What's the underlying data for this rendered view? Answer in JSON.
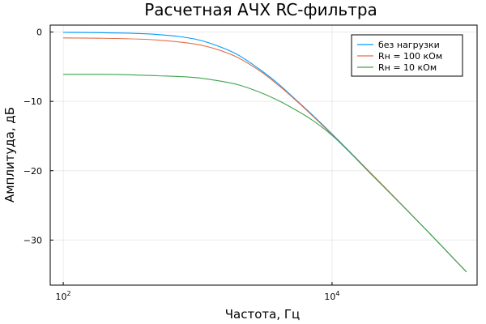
{
  "chart_data": {
    "type": "line",
    "title": "Расчетная АЧХ RC-фильтра",
    "xlabel": "Частота, Гц",
    "ylabel": "Амплитуда, дБ",
    "xscale": "log",
    "xlim": [
      80,
      120000
    ],
    "ylim": [
      -36.5,
      1.0
    ],
    "xticks": [
      {
        "value": 100,
        "base": "10",
        "exp": "2"
      },
      {
        "value": 10000,
        "base": "10",
        "exp": "4"
      }
    ],
    "yticks": [
      {
        "value": 0,
        "label": "0"
      },
      {
        "value": -10,
        "label": "−10"
      },
      {
        "value": -20,
        "label": "−20"
      },
      {
        "value": -30,
        "label": "−30"
      }
    ],
    "grid": true,
    "legend_position": "top-right",
    "series": [
      {
        "name": "без нагрузки",
        "color": "#009AFA",
        "x": [
          100,
          200,
          500,
          1000,
          1500,
          2000,
          3000,
          4000,
          5000,
          7000,
          10000,
          20000,
          50000,
          100000
        ],
        "y": [
          -0.05,
          -0.1,
          -0.35,
          -1.1,
          -2.2,
          -3.3,
          -5.6,
          -7.5,
          -9.2,
          -11.8,
          -14.7,
          -20.6,
          -28.5,
          -34.6
        ]
      },
      {
        "name": "Rн = 100 кОм",
        "color": "#E36F47",
        "x": [
          100,
          200,
          500,
          1000,
          1500,
          2000,
          3000,
          4000,
          5000,
          7000,
          10000,
          20000,
          50000,
          100000
        ],
        "y": [
          -0.85,
          -0.9,
          -1.15,
          -1.8,
          -2.7,
          -3.7,
          -5.8,
          -7.7,
          -9.3,
          -11.9,
          -14.8,
          -20.6,
          -28.5,
          -34.6
        ]
      },
      {
        "name": "Rн = 10 кОм",
        "color": "#3DA44D",
        "x": [
          100,
          200,
          500,
          1000,
          1500,
          2000,
          3000,
          4000,
          5000,
          7000,
          10000,
          20000,
          50000,
          100000
        ],
        "y": [
          -6.1,
          -6.1,
          -6.3,
          -6.6,
          -7.1,
          -7.6,
          -8.8,
          -9.9,
          -10.9,
          -12.6,
          -14.9,
          -20.7,
          -28.5,
          -34.6
        ]
      }
    ]
  }
}
